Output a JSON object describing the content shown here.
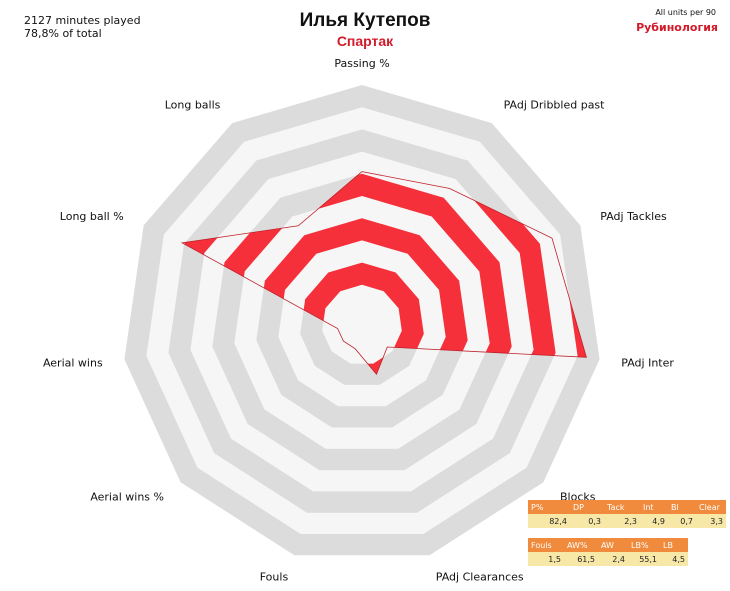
{
  "header": {
    "minutes": "2127 minutes played",
    "share": "78,8% of total",
    "player": "Илья Кутепов",
    "team": "Спартак",
    "units": "All units per 90",
    "brand": "Рубинология"
  },
  "chart_data": {
    "type": "radar",
    "axes": [
      "Passing %",
      "PAdj Dribbled past",
      "PAdj Tackles",
      "PAdj Inter",
      "Blocks",
      "PAdj Clearances",
      "Fouls",
      "Aerial wins %",
      "Aerial wins",
      "Long ball %",
      "Long balls"
    ],
    "values": [
      0.61,
      0.65,
      0.86,
      0.94,
      0.07,
      0.15,
      0.03,
      0.03,
      0.03,
      0.81,
      0.45
    ],
    "rings": 10,
    "colors": {
      "fill": "#f5303a",
      "stroke": "#c0202a",
      "band": "#dcdcdc",
      "light": "#f6f6f6"
    }
  },
  "tables": [
    {
      "headers": [
        "P%",
        "DP",
        "Tack",
        "Int",
        "Bl",
        "Clear"
      ],
      "values": [
        "82,4",
        "0,3",
        "2,3",
        "4,9",
        "0,7",
        "3,3"
      ]
    },
    {
      "headers": [
        "Fouls",
        "AW%",
        "AW",
        "LB%",
        "LB"
      ],
      "values": [
        "1,5",
        "61,5",
        "2,4",
        "55,1",
        "4,5"
      ]
    }
  ]
}
